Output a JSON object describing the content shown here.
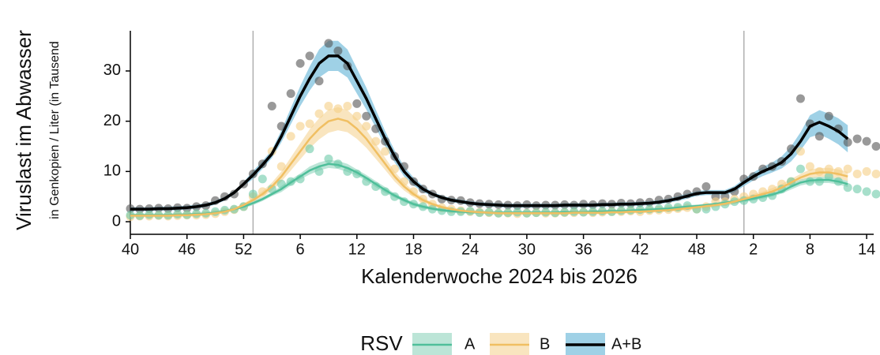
{
  "chart_data": {
    "type": "line",
    "y_label": "Viruslast im Abwasser",
    "y_sublabel": "in Genkopien / Liter (in Tausend",
    "x_label": "Kalenderwoche 2024 bis 2026",
    "legend_title": "RSV",
    "legend": "bottom",
    "ylim": [
      -1.5,
      38
    ],
    "yticks": [
      0,
      10,
      20,
      30
    ],
    "vlines": [
      13,
      65
    ],
    "categories": [
      "40",
      null,
      null,
      null,
      null,
      null,
      "46",
      null,
      null,
      null,
      null,
      null,
      "52",
      null,
      null,
      null,
      null,
      null,
      "6",
      null,
      null,
      null,
      null,
      null,
      "12",
      null,
      null,
      null,
      null,
      null,
      "18",
      null,
      null,
      null,
      null,
      null,
      "24",
      null,
      null,
      null,
      null,
      null,
      "30",
      null,
      null,
      null,
      null,
      null,
      "36",
      null,
      null,
      null,
      null,
      null,
      "42",
      null,
      null,
      null,
      null,
      null,
      "48",
      null,
      null,
      null,
      null,
      null,
      "2",
      null,
      null,
      null,
      null,
      null,
      "8",
      null,
      null,
      null,
      null,
      null,
      "14",
      null
    ],
    "series": [
      {
        "name": "A",
        "color": "#4fbf9a",
        "band_color": "#a6dcca",
        "point_color": "#6cc9a9",
        "values": [
          1.3,
          1.3,
          1.3,
          1.3,
          1.3,
          1.4,
          1.4,
          1.5,
          1.6,
          1.8,
          2.1,
          2.5,
          3.0,
          3.7,
          4.5,
          5.5,
          6.5,
          7.8,
          9,
          10.2,
          11,
          11.5,
          11.3,
          10.7,
          9.8,
          8.7,
          7.5,
          6.3,
          5.2,
          4.3,
          3.5,
          3.0,
          2.6,
          2.3,
          2.1,
          2.0,
          1.9,
          1.9,
          1.8,
          1.8,
          1.8,
          1.8,
          1.8,
          1.8,
          1.8,
          1.8,
          1.9,
          1.9,
          1.9,
          2.0,
          2.0,
          2.1,
          2.1,
          2.2,
          2.3,
          2.4,
          2.5,
          2.6,
          2.8,
          3.0,
          3.1,
          3.3,
          3.5,
          3.8,
          4.0,
          4.3,
          4.6,
          5.0,
          5.4,
          6.0,
          7.0,
          7.8,
          8.2,
          8.3,
          8.3,
          8.0,
          7.5,
          null,
          null,
          null
        ],
        "errors": [
          0.3,
          0.3,
          0.3,
          0.3,
          0.3,
          0.3,
          0.3,
          0.3,
          0.3,
          0.3,
          0.3,
          0.3,
          0.3,
          0.4,
          0.4,
          0.4,
          0.6,
          0.6,
          0.6,
          0.8,
          0.8,
          0.8,
          0.8,
          0.8,
          0.6,
          0.6,
          0.6,
          0.6,
          0.4,
          0.4,
          0.4,
          0.4,
          0.3,
          0.3,
          0.3,
          0.3,
          0.3,
          0.3,
          0.3,
          0.3,
          0.3,
          0.3,
          0.3,
          0.3,
          0.3,
          0.3,
          0.3,
          0.3,
          0.3,
          0.3,
          0.3,
          0.3,
          0.3,
          0.3,
          0.3,
          0.3,
          0.3,
          0.3,
          0.3,
          0.3,
          0.3,
          0.3,
          0.3,
          0.3,
          0.4,
          0.4,
          0.4,
          0.4,
          0.4,
          0.4,
          0.6,
          0.6,
          0.6,
          0.6,
          0.6,
          0.6,
          0.6,
          null,
          null,
          null
        ],
        "points": [
          1.3,
          1.2,
          1.4,
          1.3,
          1.3,
          1.5,
          1.4,
          1.6,
          1.7,
          2,
          2.3,
          2.5,
          3,
          5.5,
          8.5,
          6.5,
          7.5,
          8,
          8.5,
          14.5,
          10,
          12.5,
          11.5,
          10,
          9.5,
          8,
          7,
          6,
          5,
          4,
          3.5,
          3,
          2.5,
          2.2,
          2,
          2,
          2.1,
          1.8,
          1.9,
          1.7,
          1.8,
          1.9,
          1.7,
          1.8,
          1.9,
          1.8,
          1.9,
          2,
          1.9,
          2,
          2.1,
          2,
          2.2,
          2.3,
          2.4,
          2.5,
          2.6,
          2.8,
          2.9,
          3.2,
          2.5,
          2.5,
          3,
          3.5,
          4,
          4.2,
          4.5,
          4.8,
          5.2,
          6.5,
          8,
          10.5,
          8,
          8,
          9,
          8,
          6.8,
          6.5,
          6,
          5.5
        ]
      },
      {
        "name": "B",
        "color": "#f0bf62",
        "band_color": "#f7dca9",
        "point_color": "#f5cf85",
        "values": [
          1.2,
          1.2,
          1.2,
          1.2,
          1.2,
          1.3,
          1.3,
          1.4,
          1.5,
          1.7,
          2.0,
          2.5,
          3.3,
          4.3,
          5.5,
          7,
          9,
          11.5,
          14,
          16.5,
          18.5,
          20,
          20.5,
          20,
          18.5,
          16.5,
          14,
          11.5,
          9,
          7,
          5.5,
          4.3,
          3.5,
          2.9,
          2.5,
          2.2,
          2.0,
          1.9,
          1.8,
          1.7,
          1.7,
          1.7,
          1.7,
          1.7,
          1.7,
          1.7,
          1.7,
          1.8,
          1.8,
          1.8,
          1.8,
          1.9,
          1.9,
          2.0,
          2.0,
          2.1,
          2.2,
          2.3,
          2.5,
          2.7,
          2.9,
          3.1,
          3.3,
          3.6,
          4.0,
          4.5,
          5.0,
          5.5,
          6.0,
          6.8,
          7.8,
          8.8,
          9.5,
          9.8,
          9.8,
          9.5,
          9.0,
          null,
          null,
          null
        ],
        "errors": [
          0.3,
          0.3,
          0.3,
          0.3,
          0.3,
          0.3,
          0.3,
          0.3,
          0.3,
          0.3,
          0.3,
          0.3,
          0.3,
          0.5,
          0.6,
          0.8,
          1,
          1.3,
          1.6,
          1.9,
          2.1,
          2.3,
          2.3,
          2.2,
          2,
          1.8,
          1.5,
          1.2,
          1,
          0.8,
          0.6,
          0.5,
          0.3,
          0.3,
          0.3,
          0.3,
          0.3,
          0.3,
          0.3,
          0.3,
          0.3,
          0.3,
          0.3,
          0.3,
          0.3,
          0.3,
          0.3,
          0.3,
          0.3,
          0.3,
          0.3,
          0.3,
          0.3,
          0.3,
          0.3,
          0.3,
          0.3,
          0.3,
          0.4,
          0.4,
          0.4,
          0.4,
          0.4,
          0.4,
          0.5,
          0.5,
          0.5,
          0.5,
          0.7,
          0.7,
          0.7,
          0.7,
          0.9,
          0.9,
          0.9,
          0.9,
          0.9,
          null,
          null,
          null
        ],
        "points": [
          1.0,
          1.1,
          1.1,
          1.2,
          1.1,
          1.2,
          1.3,
          1.3,
          1.4,
          1.6,
          2,
          2.4,
          3,
          5,
          6,
          14,
          11,
          17,
          19,
          19.5,
          21.5,
          23,
          22.5,
          23,
          21,
          19,
          16,
          14,
          10.5,
          8,
          6,
          4.5,
          3.5,
          2.8,
          2.5,
          2.2,
          2,
          1.9,
          1.8,
          1.7,
          1.7,
          1.6,
          1.7,
          1.8,
          1.7,
          1.7,
          1.8,
          1.8,
          1.9,
          1.8,
          1.9,
          2,
          2,
          2.1,
          2,
          2.2,
          2.3,
          2.4,
          2.6,
          2.8,
          2.5,
          3,
          4,
          4,
          4.5,
          5,
          5.5,
          6,
          6.5,
          7.5,
          8,
          14,
          11,
          10,
          10.5,
          10,
          10.5,
          9.5,
          10,
          9.5
        ]
      },
      {
        "name": "A+B",
        "color": "#000000",
        "band_color": "#7fc1dd",
        "point_color": "#555555",
        "values": [
          2.5,
          2.5,
          2.5,
          2.6,
          2.6,
          2.7,
          2.8,
          3.0,
          3.3,
          3.8,
          4.6,
          5.8,
          7.5,
          9.3,
          11.3,
          13.5,
          17,
          21,
          25,
          28.5,
          31.5,
          33,
          33,
          31.5,
          28,
          24.5,
          20.5,
          16.5,
          13,
          10,
          8,
          6.5,
          5.5,
          4.8,
          4.3,
          4.0,
          3.7,
          3.5,
          3.4,
          3.3,
          3.2,
          3.2,
          3.2,
          3.2,
          3.2,
          3.2,
          3.3,
          3.3,
          3.3,
          3.3,
          3.4,
          3.4,
          3.5,
          3.5,
          3.6,
          3.7,
          3.9,
          4.2,
          4.6,
          5.1,
          5.6,
          5.8,
          5.8,
          5.8,
          6.5,
          7.8,
          9,
          10,
          10.8,
          11.8,
          13.5,
          16,
          19,
          19.8,
          19,
          18,
          16.5,
          null,
          null,
          null
        ],
        "errors": [
          0.4,
          0.4,
          0.4,
          0.4,
          0.4,
          0.4,
          0.4,
          0.4,
          0.4,
          0.4,
          0.4,
          0.4,
          0.4,
          0.8,
          0.8,
          0.8,
          1.2,
          1.6,
          2,
          2.4,
          2.8,
          3,
          3,
          2.8,
          2.5,
          2.2,
          1.8,
          1.5,
          1.2,
          1,
          0.8,
          0.6,
          0.4,
          0.4,
          0.4,
          0.4,
          0.4,
          0.4,
          0.4,
          0.4,
          0.4,
          0.4,
          0.4,
          0.4,
          0.4,
          0.4,
          0.4,
          0.4,
          0.4,
          0.4,
          0.4,
          0.4,
          0.4,
          0.4,
          0.4,
          0.4,
          0.4,
          0.4,
          0.5,
          0.5,
          0.5,
          0.5,
          0.5,
          0.5,
          0.6,
          0.7,
          0.8,
          0.9,
          1,
          1.2,
          1.5,
          1.8,
          2.2,
          2.4,
          2.5,
          2.6,
          2.7,
          null,
          null,
          null
        ],
        "points": [
          2.6,
          2.5,
          2.6,
          2.7,
          2.6,
          2.8,
          2.7,
          3.0,
          3.2,
          4.2,
          5.0,
          5.5,
          7.5,
          9.5,
          11.5,
          23,
          19,
          25.5,
          31.5,
          33,
          28,
          35.5,
          34,
          31,
          23.5,
          21,
          18.5,
          16,
          13,
          11,
          8,
          6.5,
          5.5,
          4.5,
          4.3,
          4.2,
          3.8,
          3.6,
          3.5,
          3.4,
          3.3,
          3.2,
          3.4,
          3.2,
          3.3,
          3.3,
          3.4,
          3.3,
          3.5,
          3.4,
          3.6,
          3.5,
          3.7,
          3.6,
          3.8,
          3.9,
          4.3,
          4.5,
          5,
          5.5,
          6,
          7,
          5,
          5,
          6,
          8.5,
          9,
          10.5,
          11,
          12,
          14.5,
          24.5,
          19.5,
          17,
          21,
          18.5,
          15.8,
          16.5,
          16,
          15
        ]
      }
    ]
  }
}
